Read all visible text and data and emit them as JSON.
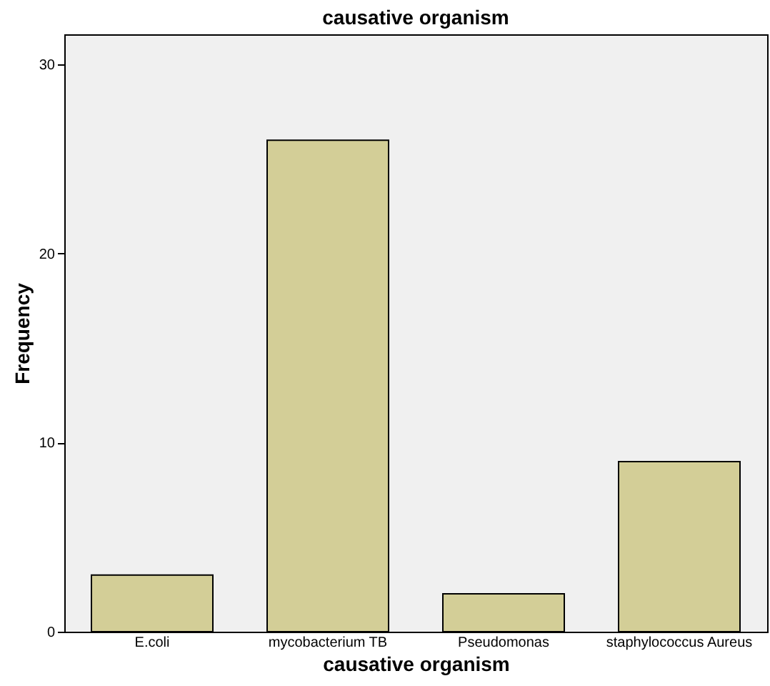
{
  "chart_data": {
    "type": "bar",
    "title": "causative organism",
    "xlabel": "causative organism",
    "ylabel": "Frequency",
    "categories": [
      "E.coli",
      "mycobacterium TB",
      "Pseudomonas",
      "staphylococcus Aureus"
    ],
    "values": [
      3,
      26,
      2,
      9
    ],
    "color": "#d3ce97",
    "ylim": [
      0,
      31.6
    ],
    "yticks": [
      0,
      10,
      20,
      30
    ],
    "grid": false
  }
}
